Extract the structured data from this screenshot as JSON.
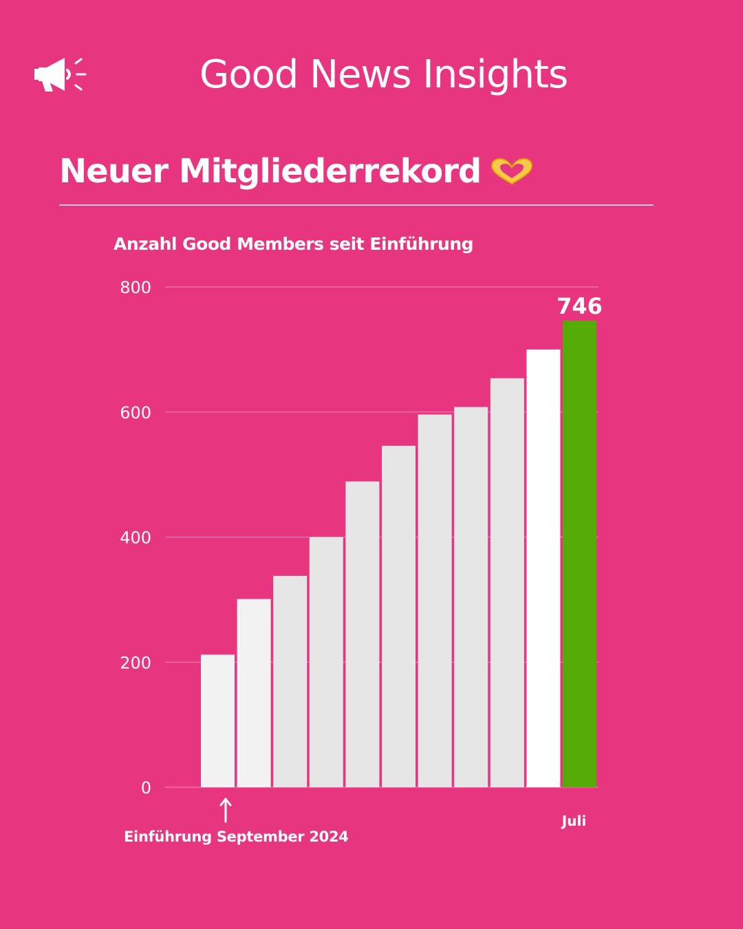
{
  "header": {
    "title": "Good News Insights",
    "icon": "megaphone-icon"
  },
  "headline": {
    "text": "Neuer Mitgliederrekord",
    "emoji_icon": "heart-hands-icon"
  },
  "colors": {
    "background": "#e8357f",
    "bar_light": "#f2f2f2",
    "bar_mid": "#e6e6e6",
    "bar_white": "#ffffff",
    "bar_highlight": "#55ab06",
    "emoji": "#f7c948"
  },
  "chart_data": {
    "type": "bar",
    "title": "Anzahl Good Members seit Einführung",
    "categories": [
      "",
      "",
      "",
      "",
      "",
      "",
      "",
      "",
      "",
      "",
      "Juli"
    ],
    "values": [
      212,
      301,
      338,
      400,
      489,
      546,
      596,
      608,
      654,
      700,
      746
    ],
    "data_labels": [
      "",
      "",
      "",
      "",
      "",
      "",
      "",
      "",
      "",
      "",
      "746"
    ],
    "highlight_index": 10,
    "ylim": [
      0,
      800
    ],
    "yticks": [
      0,
      200,
      400,
      600,
      800
    ],
    "grid": true,
    "annotation": {
      "text": "Einführung September 2024",
      "target_index": 0,
      "icon": "arrow-up-icon"
    }
  }
}
